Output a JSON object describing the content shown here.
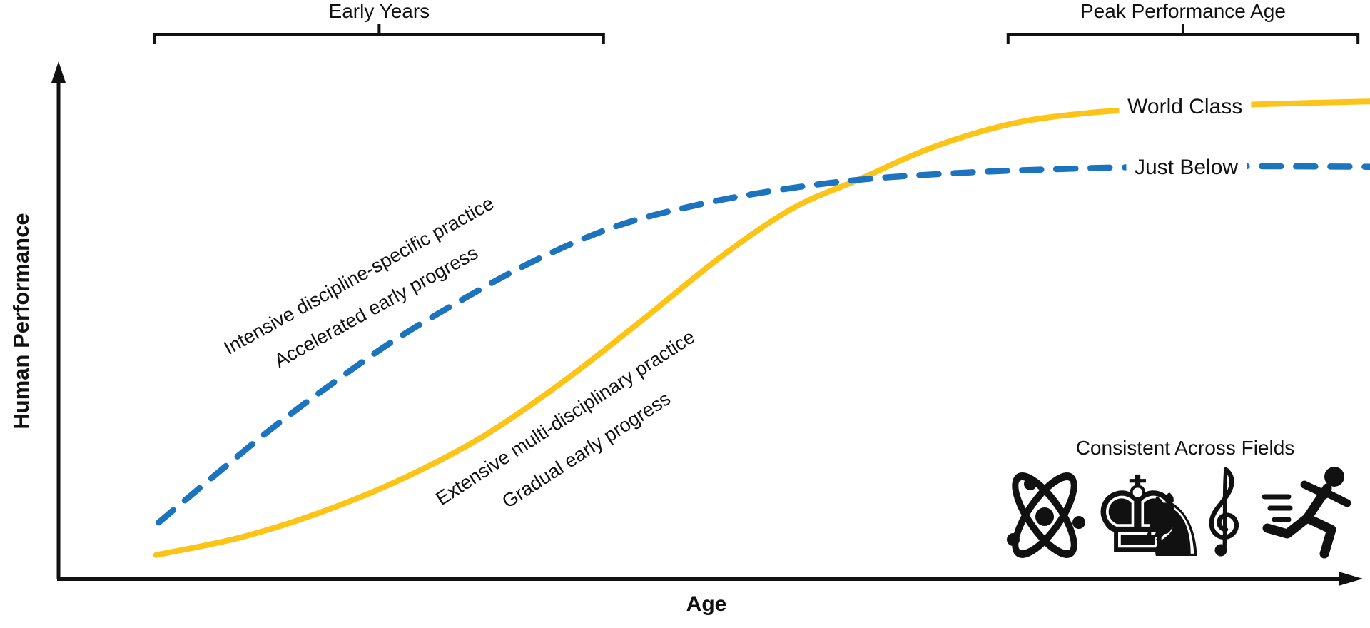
{
  "figure": {
    "background": "#ffffff",
    "ink_color": "#111111"
  },
  "badge": {
    "title": "Consistent Across Fields",
    "icons": [
      {
        "name": "atom-icon",
        "field": "science"
      },
      {
        "name": "chess-king-icon",
        "field": "chess",
        "glyph": "♚"
      },
      {
        "name": "chess-knight-icon",
        "field": "chess",
        "glyph": "♞"
      },
      {
        "name": "treble-clef-icon",
        "field": "music"
      },
      {
        "name": "runner-icon",
        "field": "athletics"
      }
    ]
  },
  "chart_data": {
    "type": "line",
    "title": "",
    "xlabel": "Age",
    "ylabel": "Human Performance",
    "x_axis": {
      "style": "arrow",
      "ticks": [],
      "range_pct": [
        0,
        100
      ]
    },
    "y_axis": {
      "style": "arrow",
      "ticks": [],
      "range_pct": [
        0,
        100
      ]
    },
    "grid": false,
    "legend_position": "inline-right",
    "series": [
      {
        "name": "World Class",
        "color": "#FBC417",
        "line_style": "solid",
        "line_width": 8,
        "description": "sigmoid growth, gradual early progress, highest final level",
        "points": [
          [
            7.5,
            4.5
          ],
          [
            14.2,
            8.1
          ],
          [
            20.7,
            13.4
          ],
          [
            26.8,
            19.9
          ],
          [
            32.8,
            28.0
          ],
          [
            38.8,
            38.5
          ],
          [
            44.9,
            50.6
          ],
          [
            50.9,
            62.9
          ],
          [
            56.4,
            72.4
          ],
          [
            61.6,
            78.2
          ],
          [
            67.4,
            84.6
          ],
          [
            73.4,
            89.1
          ],
          [
            79.4,
            91.2
          ],
          [
            86.0,
            92.2
          ],
          [
            93.1,
            92.9
          ],
          [
            100.8,
            93.4
          ]
        ]
      },
      {
        "name": "Just Below",
        "color": "#1C73BE",
        "line_style": "dashed",
        "line_width": 8.5,
        "description": "fast early saturation, accelerated early progress, plateaus lower",
        "points": [
          [
            7.7,
            10.9
          ],
          [
            12.0,
            20.1
          ],
          [
            16.3,
            29.1
          ],
          [
            20.7,
            37.5
          ],
          [
            25.7,
            46.4
          ],
          [
            31.2,
            54.8
          ],
          [
            36.6,
            62.2
          ],
          [
            42.7,
            68.8
          ],
          [
            48.7,
            72.9
          ],
          [
            54.7,
            75.8
          ],
          [
            61.3,
            78.0
          ],
          [
            68.5,
            79.3
          ],
          [
            76.1,
            80.1
          ],
          [
            84.4,
            80.6
          ],
          [
            93.1,
            80.7
          ],
          [
            100.8,
            80.6
          ]
        ]
      }
    ],
    "annotations": {
      "curve_labels": [
        {
          "text": "World Class",
          "series": "World Class",
          "x_pct": 86.6,
          "y_pct": 92.3
        },
        {
          "text": "Just Below",
          "series": "Just Below",
          "x_pct": 86.7,
          "y_pct": 80.4
        }
      ],
      "curve_notes": [
        {
          "series": "Just Below",
          "line1": "Intensive discipline-specific practice",
          "line2": "Accelerated early progress"
        },
        {
          "series": "World Class",
          "line1": "Extensive multi-disciplinary practice",
          "line2": "Gradual early progress"
        }
      ],
      "brackets": [
        {
          "label": "Early Years",
          "x_start_pct": 7.4,
          "x_end_pct": 41.9
        },
        {
          "label": "Peak Performance Age",
          "x_start_pct": 73.0,
          "x_end_pct": 99.9
        }
      ],
      "crossover": {
        "x_pct": 61.6,
        "y_pct": 78.2
      }
    }
  }
}
